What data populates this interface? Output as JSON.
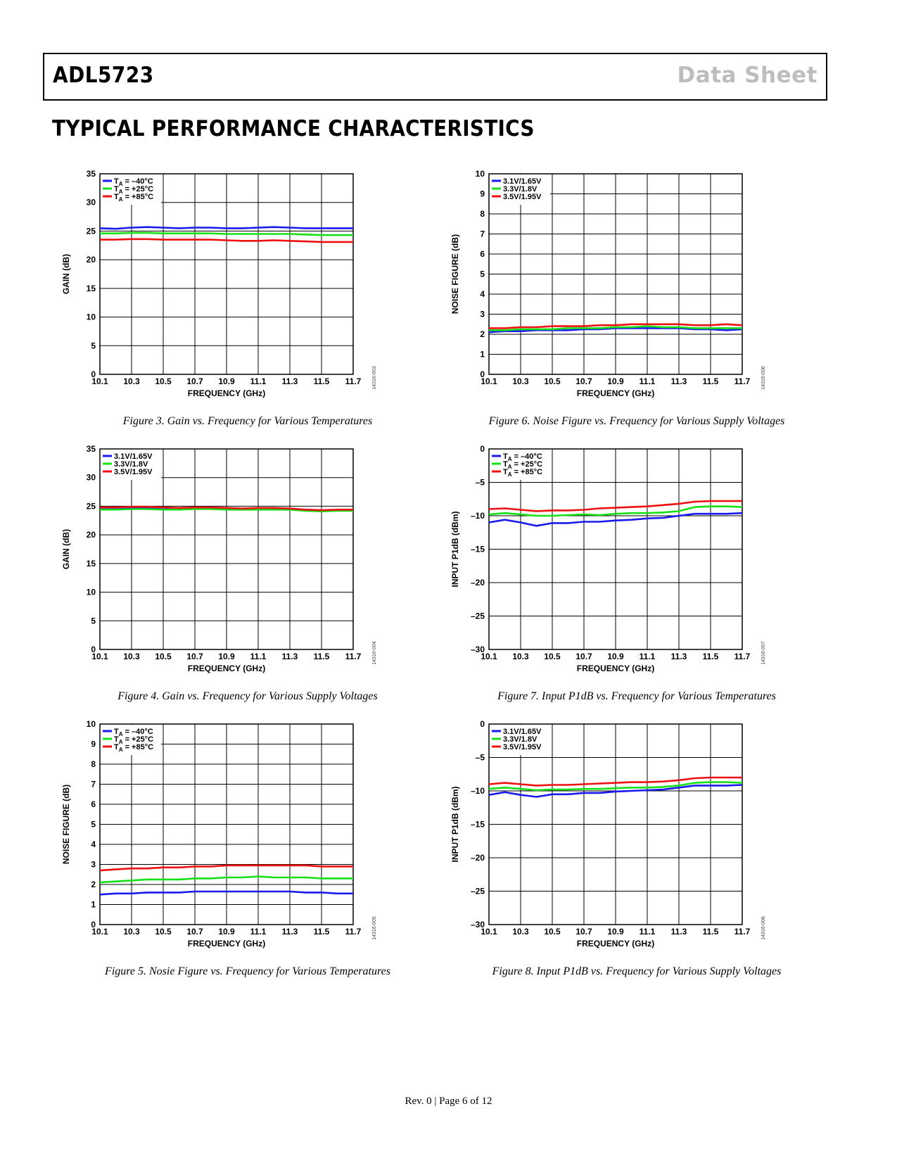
{
  "header": {
    "product": "ADL5723",
    "doc_type": "Data Sheet"
  },
  "section_title": "TYPICAL PERFORMANCE CHARACTERISTICS",
  "footer": "Rev. 0 | Page 6 of 12",
  "colors": {
    "blue": "#1a1aee",
    "green": "#18e018",
    "red": "#ee1111"
  },
  "chart_data": [
    {
      "id": "fig3",
      "type": "line",
      "caption": "Figure 3. Gain vs. Frequency for Various Temperatures",
      "code": "14316-003",
      "xlabel": "FREQUENCY (GHz)",
      "ylabel": "GAIN (dB)",
      "xlim": [
        10.1,
        11.7
      ],
      "ylim": [
        0,
        35
      ],
      "xticks": [
        10.1,
        10.3,
        10.5,
        10.7,
        10.9,
        11.1,
        11.3,
        11.5,
        11.7
      ],
      "yticks": [
        0,
        5,
        10,
        15,
        20,
        25,
        30,
        35
      ],
      "xtick_labels": [
        "10.1",
        "10.3",
        "10.5",
        "10.7",
        "10.9",
        "11.1",
        "11.3",
        "11.5",
        "11.7"
      ],
      "ytick_labels": [
        "0",
        "5",
        "10",
        "15",
        "20",
        "25",
        "30",
        "35"
      ],
      "legend_kind": "temp",
      "legend": [
        "TA = –40°C",
        "TA = +25°C",
        "TA = +85°C"
      ],
      "x": [
        10.1,
        10.2,
        10.3,
        10.4,
        10.5,
        10.6,
        10.7,
        10.8,
        10.9,
        11.0,
        11.1,
        11.2,
        11.3,
        11.4,
        11.5,
        11.6,
        11.7
      ],
      "series": [
        {
          "name": "TA = –40°C",
          "color": "#1a1aee",
          "values": [
            25.5,
            25.4,
            25.6,
            25.7,
            25.6,
            25.5,
            25.6,
            25.6,
            25.5,
            25.5,
            25.6,
            25.7,
            25.6,
            25.5,
            25.5,
            25.5,
            25.5
          ]
        },
        {
          "name": "TA = +25°C",
          "color": "#18e018",
          "values": [
            24.6,
            24.6,
            24.7,
            24.7,
            24.6,
            24.6,
            24.6,
            24.6,
            24.5,
            24.5,
            24.5,
            24.5,
            24.5,
            24.4,
            24.3,
            24.3,
            24.3
          ]
        },
        {
          "name": "TA = +85°C",
          "color": "#ee1111",
          "values": [
            23.5,
            23.5,
            23.6,
            23.6,
            23.5,
            23.5,
            23.5,
            23.5,
            23.4,
            23.3,
            23.3,
            23.4,
            23.3,
            23.2,
            23.1,
            23.1,
            23.1
          ]
        }
      ]
    },
    {
      "id": "fig6",
      "type": "line",
      "caption": "Figure 6. Noise Figure vs. Frequency for Various Supply Voltages",
      "code": "14316-006",
      "xlabel": "FREQUENCY (GHz)",
      "ylabel": "NOISE FIGURE (dB)",
      "xlim": [
        10.1,
        11.7
      ],
      "ylim": [
        0,
        10
      ],
      "xticks": [
        10.1,
        10.3,
        10.5,
        10.7,
        10.9,
        11.1,
        11.3,
        11.5,
        11.7
      ],
      "yticks": [
        0,
        1,
        2,
        3,
        4,
        5,
        6,
        7,
        8,
        9,
        10
      ],
      "xtick_labels": [
        "10.1",
        "10.3",
        "10.5",
        "10.7",
        "10.9",
        "11.1",
        "11.3",
        "11.5",
        "11.7"
      ],
      "ytick_labels": [
        "0",
        "1",
        "2",
        "3",
        "4",
        "5",
        "6",
        "7",
        "8",
        "9",
        "10"
      ],
      "legend_kind": "volt",
      "legend": [
        "3.1V/1.65V",
        "3.3V/1.8V",
        "3.5V/1.95V"
      ],
      "x": [
        10.1,
        10.2,
        10.3,
        10.4,
        10.5,
        10.6,
        10.7,
        10.8,
        10.9,
        11.0,
        11.1,
        11.2,
        11.3,
        11.4,
        11.5,
        11.6,
        11.7
      ],
      "series": [
        {
          "name": "3.1V/1.65V",
          "color": "#1a1aee",
          "values": [
            2.1,
            2.15,
            2.15,
            2.2,
            2.2,
            2.2,
            2.25,
            2.25,
            2.3,
            2.3,
            2.3,
            2.3,
            2.3,
            2.25,
            2.25,
            2.2,
            2.25
          ]
        },
        {
          "name": "3.3V/1.8V",
          "color": "#18e018",
          "values": [
            2.2,
            2.2,
            2.25,
            2.25,
            2.25,
            2.3,
            2.3,
            2.3,
            2.35,
            2.35,
            2.4,
            2.35,
            2.35,
            2.3,
            2.3,
            2.3,
            2.3
          ]
        },
        {
          "name": "3.5V/1.95V",
          "color": "#ee1111",
          "values": [
            2.3,
            2.3,
            2.35,
            2.35,
            2.4,
            2.4,
            2.4,
            2.45,
            2.45,
            2.5,
            2.5,
            2.5,
            2.5,
            2.45,
            2.45,
            2.5,
            2.45
          ]
        }
      ]
    },
    {
      "id": "fig4",
      "type": "line",
      "caption": "Figure 4. Gain vs. Frequency for Various Supply Voltages",
      "code": "14316-004",
      "xlabel": "FREQUENCY (GHz)",
      "ylabel": "GAIN (dB)",
      "xlim": [
        10.1,
        11.7
      ],
      "ylim": [
        0,
        35
      ],
      "xticks": [
        10.1,
        10.3,
        10.5,
        10.7,
        10.9,
        11.1,
        11.3,
        11.5,
        11.7
      ],
      "yticks": [
        0,
        5,
        10,
        15,
        20,
        25,
        30,
        35
      ],
      "xtick_labels": [
        "10.1",
        "10.3",
        "10.5",
        "10.7",
        "10.9",
        "11.1",
        "11.3",
        "11.5",
        "11.7"
      ],
      "ytick_labels": [
        "0",
        "5",
        "10",
        "15",
        "20",
        "25",
        "30",
        "35"
      ],
      "legend_kind": "volt",
      "legend": [
        "3.1V/1.65V",
        "3.3V/1.8V",
        "3.5V/1.95V"
      ],
      "x": [
        10.1,
        10.2,
        10.3,
        10.4,
        10.5,
        10.6,
        10.7,
        10.8,
        10.9,
        11.0,
        11.1,
        11.2,
        11.3,
        11.4,
        11.5,
        11.6,
        11.7
      ],
      "series": [
        {
          "name": "3.1V/1.65V",
          "color": "#1a1aee",
          "values": [
            24.5,
            24.5,
            24.6,
            24.6,
            24.5,
            24.5,
            24.6,
            24.6,
            24.5,
            24.5,
            24.5,
            24.5,
            24.5,
            24.3,
            24.2,
            24.3,
            24.3
          ]
        },
        {
          "name": "3.3V/1.8V",
          "color": "#18e018",
          "values": [
            24.4,
            24.4,
            24.5,
            24.5,
            24.4,
            24.4,
            24.5,
            24.5,
            24.4,
            24.4,
            24.4,
            24.4,
            24.4,
            24.2,
            24.1,
            24.2,
            24.2
          ]
        },
        {
          "name": "3.5V/1.95V",
          "color": "#ee1111",
          "values": [
            24.8,
            24.8,
            24.9,
            24.9,
            24.8,
            24.7,
            24.8,
            24.8,
            24.7,
            24.6,
            24.7,
            24.7,
            24.6,
            24.4,
            24.3,
            24.4,
            24.4
          ]
        }
      ]
    },
    {
      "id": "fig7",
      "type": "line",
      "caption": "Figure 7. Input P1dB vs. Frequency for Various Temperatures",
      "code": "14316-007",
      "xlabel": "FREQUENCY (GHz)",
      "ylabel": "INPUT P1dB (dBm)",
      "xlim": [
        10.1,
        11.7
      ],
      "ylim": [
        -30,
        0
      ],
      "xticks": [
        10.1,
        10.3,
        10.5,
        10.7,
        10.9,
        11.1,
        11.3,
        11.5,
        11.7
      ],
      "yticks": [
        -30,
        -25,
        -20,
        -15,
        -10,
        -5,
        0
      ],
      "xtick_labels": [
        "10.1",
        "10.3",
        "10.5",
        "10.7",
        "10.9",
        "11.1",
        "11.3",
        "11.5",
        "11.7"
      ],
      "ytick_labels": [
        "–30",
        "–25",
        "–20",
        "–15",
        "–10",
        "–5",
        "0"
      ],
      "legend_kind": "temp",
      "legend": [
        "TA = –40°C",
        "TA = +25°C",
        "TA = +85°C"
      ],
      "x": [
        10.1,
        10.2,
        10.3,
        10.4,
        10.5,
        10.6,
        10.7,
        10.8,
        10.9,
        11.0,
        11.1,
        11.2,
        11.3,
        11.4,
        11.5,
        11.6,
        11.7
      ],
      "series": [
        {
          "name": "TA = –40°C",
          "color": "#1a1aee",
          "values": [
            -11.0,
            -10.6,
            -11.0,
            -11.5,
            -11.1,
            -11.1,
            -10.9,
            -10.9,
            -10.7,
            -10.6,
            -10.4,
            -10.3,
            -10.0,
            -9.7,
            -9.7,
            -9.7,
            -9.6
          ]
        },
        {
          "name": "TA = +25°C",
          "color": "#18e018",
          "values": [
            -9.8,
            -9.6,
            -9.8,
            -10.0,
            -10.0,
            -9.9,
            -9.8,
            -9.9,
            -9.7,
            -9.6,
            -9.6,
            -9.5,
            -9.3,
            -8.7,
            -8.6,
            -8.6,
            -8.7
          ]
        },
        {
          "name": "TA = +85°C",
          "color": "#ee1111",
          "values": [
            -9.0,
            -8.9,
            -9.1,
            -9.3,
            -9.2,
            -9.2,
            -9.1,
            -8.9,
            -8.8,
            -8.7,
            -8.6,
            -8.4,
            -8.2,
            -7.9,
            -7.8,
            -7.8,
            -7.8
          ]
        }
      ]
    },
    {
      "id": "fig5",
      "type": "line",
      "caption": "Figure 5. Nosie Figure vs. Frequency for Various Temperatures",
      "code": "14316-005",
      "xlabel": "FREQUENCY (GHz)",
      "ylabel": "NOISE FIGURE (dB)",
      "xlim": [
        10.1,
        11.7
      ],
      "ylim": [
        0,
        10
      ],
      "xticks": [
        10.1,
        10.3,
        10.5,
        10.7,
        10.9,
        11.1,
        11.3,
        11.5,
        11.7
      ],
      "yticks": [
        0,
        1,
        2,
        3,
        4,
        5,
        6,
        7,
        8,
        9,
        10
      ],
      "xtick_labels": [
        "10.1",
        "10.3",
        "10.5",
        "10.7",
        "10.9",
        "11.1",
        "11.3",
        "11.5",
        "11.7"
      ],
      "ytick_labels": [
        "0",
        "1",
        "2",
        "3",
        "4",
        "5",
        "6",
        "7",
        "8",
        "9",
        "10"
      ],
      "legend_kind": "temp",
      "legend": [
        "TA = –40°C",
        "TA = +25°C",
        "TA = +85°C"
      ],
      "x": [
        10.1,
        10.2,
        10.3,
        10.4,
        10.5,
        10.6,
        10.7,
        10.8,
        10.9,
        11.0,
        11.1,
        11.2,
        11.3,
        11.4,
        11.5,
        11.6,
        11.7
      ],
      "series": [
        {
          "name": "TA = –40°C",
          "color": "#1a1aee",
          "values": [
            1.5,
            1.55,
            1.55,
            1.6,
            1.6,
            1.6,
            1.65,
            1.65,
            1.65,
            1.65,
            1.65,
            1.65,
            1.65,
            1.6,
            1.6,
            1.55,
            1.55
          ]
        },
        {
          "name": "TA = +25°C",
          "color": "#18e018",
          "values": [
            2.1,
            2.15,
            2.2,
            2.25,
            2.25,
            2.25,
            2.3,
            2.3,
            2.35,
            2.35,
            2.4,
            2.35,
            2.35,
            2.35,
            2.3,
            2.3,
            2.3
          ]
        },
        {
          "name": "TA = +85°C",
          "color": "#ee1111",
          "values": [
            2.7,
            2.75,
            2.8,
            2.8,
            2.85,
            2.85,
            2.9,
            2.9,
            2.95,
            2.95,
            2.95,
            2.95,
            2.95,
            2.95,
            2.9,
            2.9,
            2.9
          ]
        }
      ]
    },
    {
      "id": "fig8",
      "type": "line",
      "caption": "Figure 8. Input P1dB vs. Frequency for Various Supply Voltages",
      "code": "14316-008",
      "xlabel": "FREQUENCY (GHz)",
      "ylabel": "INPUT P1dB (dBm)",
      "xlim": [
        10.1,
        11.7
      ],
      "ylim": [
        -30,
        0
      ],
      "xticks": [
        10.1,
        10.3,
        10.5,
        10.7,
        10.9,
        11.1,
        11.3,
        11.5,
        11.7
      ],
      "yticks": [
        -30,
        -25,
        -20,
        -15,
        -10,
        -5,
        0
      ],
      "xtick_labels": [
        "10.1",
        "10.3",
        "10.5",
        "10.7",
        "10.9",
        "11.1",
        "11.3",
        "11.5",
        "11.7"
      ],
      "ytick_labels": [
        "–30",
        "–25",
        "–20",
        "–15",
        "–10",
        "–5",
        "0"
      ],
      "legend_kind": "volt",
      "legend": [
        "3.1V/1.65V",
        "3.3V/1.8V",
        "3.5V/1.95V"
      ],
      "x": [
        10.1,
        10.2,
        10.3,
        10.4,
        10.5,
        10.6,
        10.7,
        10.8,
        10.9,
        11.0,
        11.1,
        11.2,
        11.3,
        11.4,
        11.5,
        11.6,
        11.7
      ],
      "series": [
        {
          "name": "3.1V/1.65V",
          "color": "#1a1aee",
          "values": [
            -10.6,
            -10.2,
            -10.6,
            -10.9,
            -10.5,
            -10.5,
            -10.3,
            -10.3,
            -10.1,
            -10.0,
            -9.9,
            -9.8,
            -9.5,
            -9.2,
            -9.2,
            -9.2,
            -9.1
          ]
        },
        {
          "name": "3.3V/1.8V",
          "color": "#18e018",
          "values": [
            -9.7,
            -9.5,
            -9.7,
            -9.9,
            -9.8,
            -9.8,
            -9.7,
            -9.7,
            -9.6,
            -9.5,
            -9.5,
            -9.4,
            -9.2,
            -8.8,
            -8.7,
            -8.7,
            -8.8
          ]
        },
        {
          "name": "3.5V/1.95V",
          "color": "#ee1111",
          "values": [
            -9.0,
            -8.8,
            -9.0,
            -9.2,
            -9.1,
            -9.1,
            -9.0,
            -8.9,
            -8.8,
            -8.7,
            -8.7,
            -8.6,
            -8.4,
            -8.1,
            -8.0,
            -8.0,
            -8.0
          ]
        }
      ]
    }
  ]
}
